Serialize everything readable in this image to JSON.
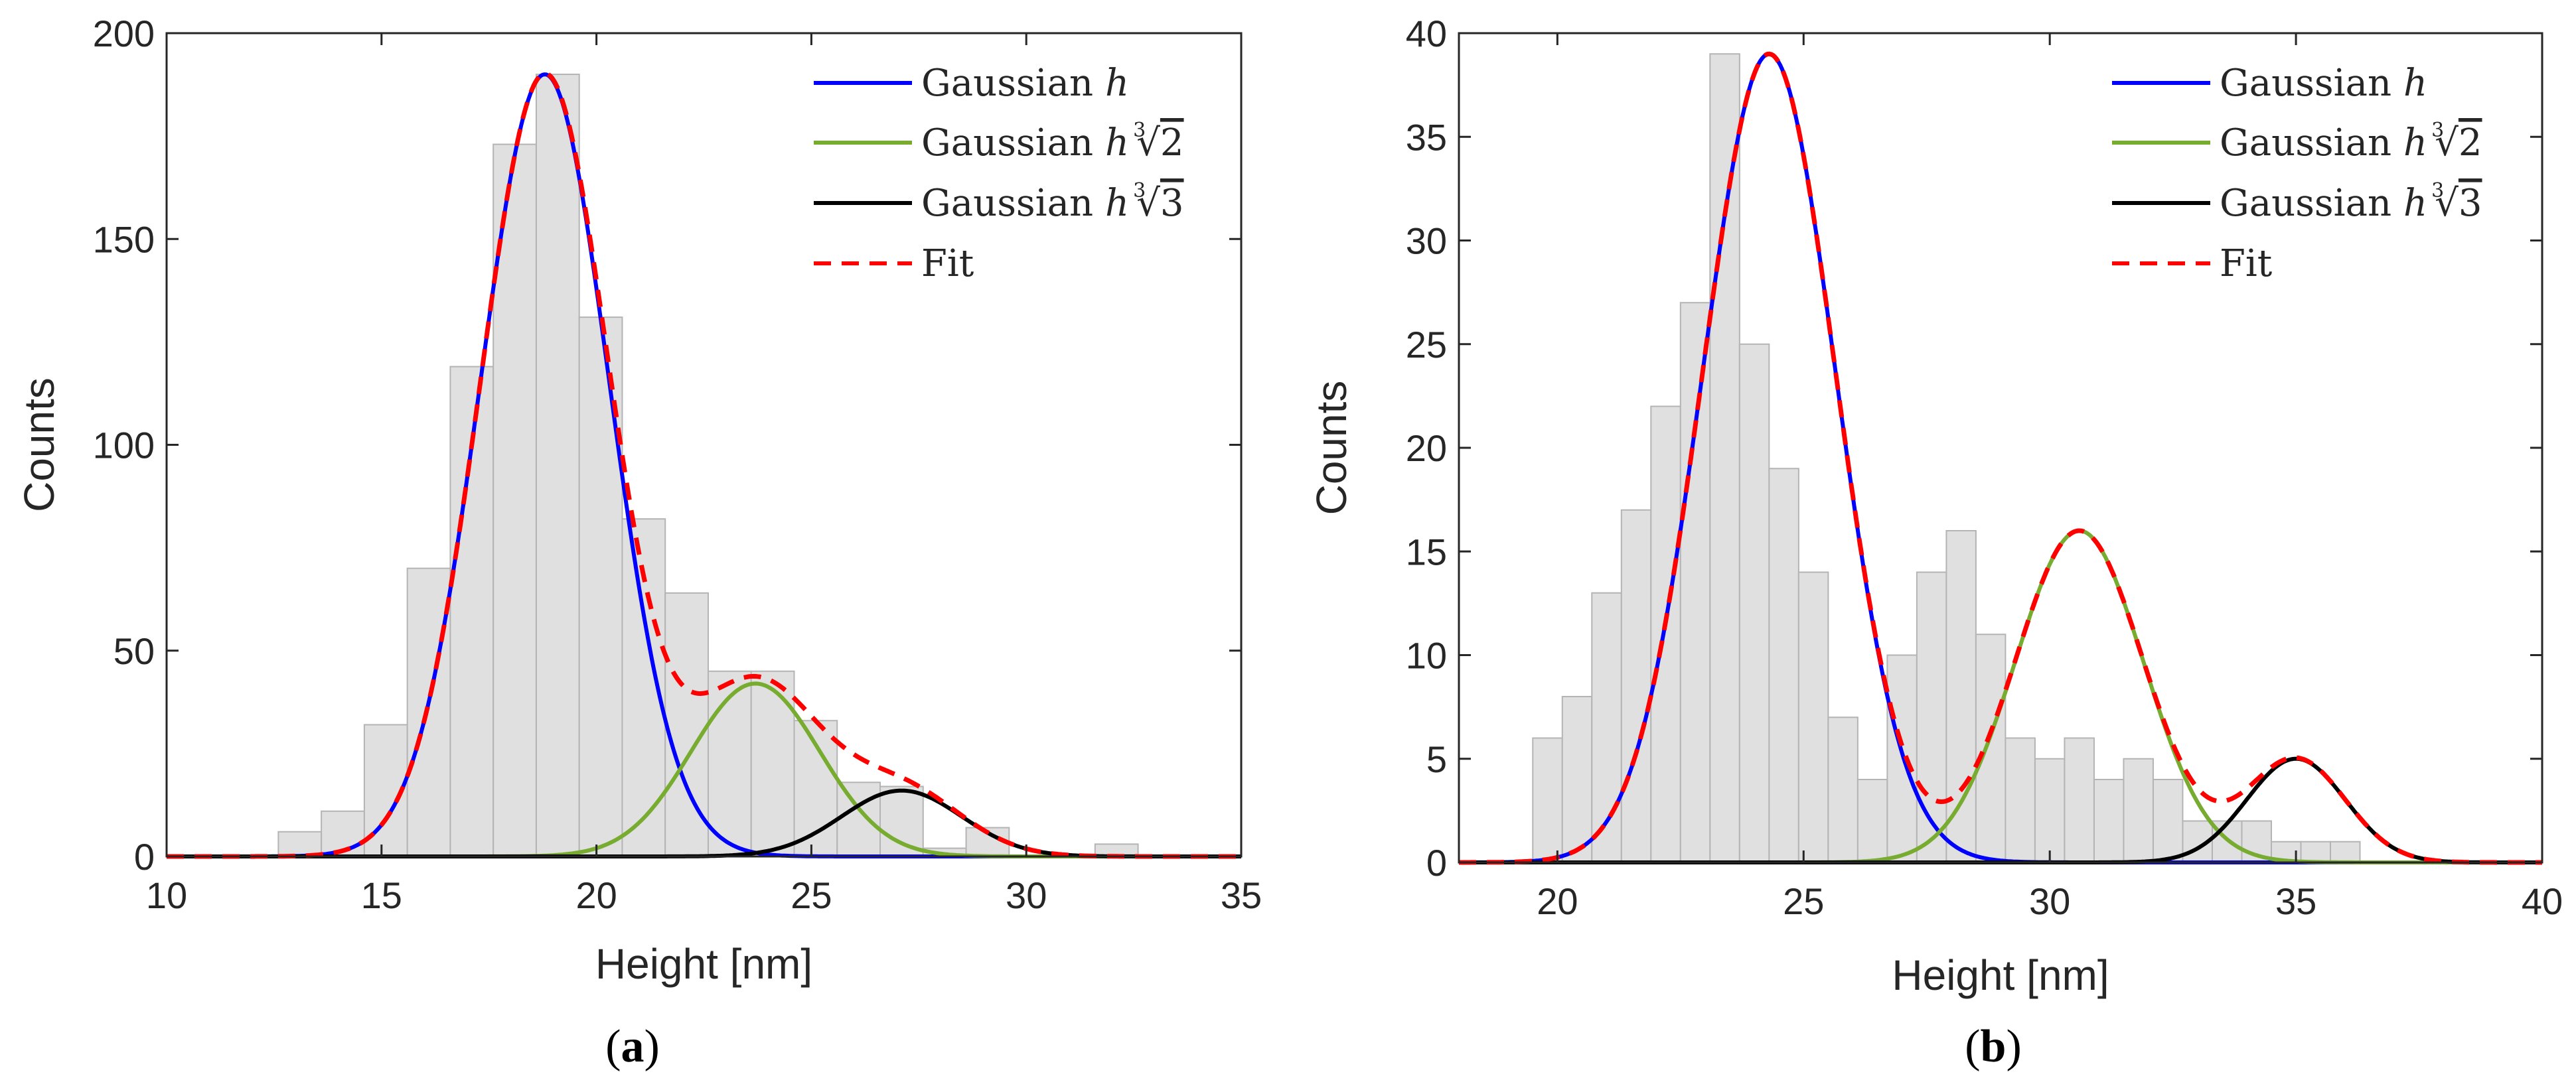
{
  "chart_data": [
    {
      "type": "bar",
      "panel_label": "a",
      "xlabel": "Height [nm]",
      "ylabel": "Counts",
      "xlim": [
        10,
        35
      ],
      "ylim": [
        0,
        200
      ],
      "xticks": [
        10,
        15,
        20,
        25,
        30,
        35
      ],
      "yticks": [
        0,
        50,
        100,
        150,
        200
      ],
      "histogram": {
        "bin_edges": [
          12.6,
          13.6,
          14.6,
          15.6,
          16.6,
          17.6,
          18.6,
          19.6,
          20.6,
          21.6,
          22.6,
          23.6,
          24.6,
          25.6,
          26.6,
          27.6,
          28.6,
          29.6,
          30.6,
          31.6,
          32.6
        ],
        "counts": [
          6,
          11,
          32,
          70,
          119,
          173,
          190,
          131,
          82,
          64,
          45,
          45,
          33,
          18,
          17,
          2,
          7,
          0,
          0,
          3
        ]
      },
      "series": [
        {
          "name": "Gaussian h",
          "color": "#0000ff",
          "amplitude": 190,
          "mean": 18.8,
          "sigma": 1.5
        },
        {
          "name": "Gaussian h∛2",
          "color": "#77ac30",
          "amplitude": 42,
          "mean": 23.7,
          "sigma": 1.5
        },
        {
          "name": "Gaussian h∛3",
          "color": "#000000",
          "amplitude": 16,
          "mean": 27.1,
          "sigma": 1.4
        },
        {
          "name": "Fit",
          "color": "#ff0000",
          "style": "dashed",
          "sum_of_components": true
        }
      ],
      "legend_position": "top-right",
      "legend": [
        {
          "text": "Gaussian",
          "math": "h",
          "root": ""
        },
        {
          "text": "Gaussian",
          "math": "h",
          "root": "2"
        },
        {
          "text": "Gaussian",
          "math": "h",
          "root": "3"
        },
        {
          "text": "Fit",
          "math": "",
          "root": ""
        }
      ]
    },
    {
      "type": "bar",
      "panel_label": "b",
      "xlabel": "Height [nm]",
      "ylabel": "Counts",
      "xlim": [
        18,
        40
      ],
      "ylim": [
        0,
        40
      ],
      "xticks": [
        20,
        25,
        30,
        35,
        40
      ],
      "yticks": [
        0,
        5,
        10,
        15,
        20,
        25,
        30,
        35,
        40
      ],
      "histogram": {
        "bin_edges": [
          19.5,
          20.1,
          20.7,
          21.3,
          21.9,
          22.5,
          23.1,
          23.7,
          24.3,
          24.9,
          25.5,
          26.1,
          26.7,
          27.3,
          27.9,
          28.5,
          29.1,
          29.7,
          30.3,
          30.9,
          31.5,
          32.1,
          32.7,
          33.3,
          33.9,
          34.5,
          35.1,
          35.7,
          36.3,
          36.9,
          37.5,
          38.1,
          38.7,
          39.3
        ],
        "counts": [
          6,
          8,
          13,
          17,
          22,
          27,
          39,
          25,
          19,
          14,
          7,
          4,
          10,
          14,
          16,
          11,
          6,
          5,
          6,
          4,
          5,
          4,
          2,
          2,
          2,
          1,
          1,
          1,
          0,
          0,
          0,
          0,
          0
        ]
      },
      "series": [
        {
          "name": "Gaussian h",
          "color": "#0000ff",
          "amplitude": 39,
          "mean": 24.3,
          "sigma": 1.35
        },
        {
          "name": "Gaussian h∛2",
          "color": "#77ac30",
          "amplitude": 16,
          "mean": 30.6,
          "sigma": 1.3
        },
        {
          "name": "Gaussian h∛3",
          "color": "#000000",
          "amplitude": 5,
          "mean": 35.0,
          "sigma": 1.0
        },
        {
          "name": "Fit",
          "color": "#ff0000",
          "style": "dashed",
          "sum_of_components": true
        }
      ],
      "legend_position": "top-right",
      "legend": [
        {
          "text": "Gaussian",
          "math": "h",
          "root": ""
        },
        {
          "text": "Gaussian",
          "math": "h",
          "root": "2"
        },
        {
          "text": "Gaussian",
          "math": "h",
          "root": "3"
        },
        {
          "text": "Fit",
          "math": "",
          "root": ""
        }
      ]
    }
  ]
}
